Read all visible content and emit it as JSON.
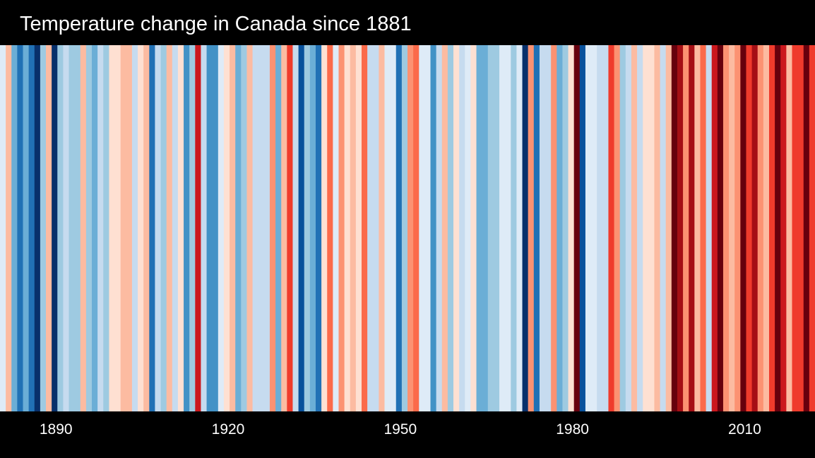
{
  "chart_data": {
    "type": "heatmap",
    "title": "Temperature change in Canada since 1881",
    "x_start_year": 1881,
    "x_end_year": 2022,
    "xlabel": "",
    "ylabel": "",
    "x_ticks": [
      1890,
      1920,
      1950,
      1980,
      2010
    ],
    "x_tick_labels": [
      "1890",
      "1920",
      "1950",
      "1980",
      "2010"
    ],
    "palette": [
      "#08306b",
      "#08519c",
      "#2171b5",
      "#4292c6",
      "#6baed6",
      "#9ecae1",
      "#c6dbef",
      "#deebf7",
      "#fee0d2",
      "#fcbba1",
      "#fc9272",
      "#fb6a4a",
      "#ef3b2c",
      "#cb181d",
      "#a50f15",
      "#67000d"
    ],
    "color_level_by_year": [
      7,
      9,
      4,
      2,
      4,
      2,
      0,
      5,
      9,
      0,
      5,
      6,
      5,
      5,
      9,
      5,
      4,
      6,
      5,
      8,
      8,
      9,
      9,
      6,
      8,
      9,
      2,
      6,
      5,
      9,
      6,
      8,
      3,
      5,
      13,
      6,
      3,
      3,
      7,
      8,
      9,
      4,
      5,
      9,
      6,
      6,
      6,
      10,
      4,
      9,
      12,
      6,
      1,
      5,
      4,
      2,
      8,
      11,
      7,
      10,
      8,
      9,
      8,
      11,
      6,
      6,
      9,
      7,
      7,
      2,
      5,
      10,
      11,
      7,
      7,
      3,
      6,
      9,
      5,
      8,
      6,
      7,
      8,
      4,
      4,
      5,
      5,
      7,
      7,
      5,
      7,
      0,
      10,
      2,
      6,
      6,
      10,
      4,
      5,
      8,
      15,
      1,
      7,
      7,
      6,
      6,
      12,
      10,
      5,
      6,
      9,
      6,
      8,
      8,
      9,
      6,
      9,
      15,
      14,
      10,
      14,
      9,
      11,
      6,
      13,
      15,
      10,
      9,
      10,
      15,
      12,
      14,
      10,
      9,
      12,
      15,
      13,
      9,
      12,
      12,
      15,
      12
    ]
  }
}
